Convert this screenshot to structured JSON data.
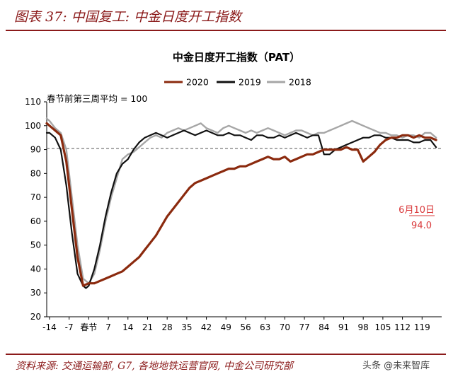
{
  "header": {
    "title": "图表 37: 中国复工: 中金日度开工指数"
  },
  "footer": {
    "source": "资料来源: 交通运输部, G7, 各地地铁运营官网, 中金公司研究部"
  },
  "watermark": "头条 @未来智库",
  "chart_data": {
    "type": "line",
    "title": "中金日度开工指数（PAT）",
    "annotation_note": "春节前第三周平均 = 100",
    "x_tick_labels": [
      "-14",
      "-7",
      "春节",
      "7",
      "14",
      "21",
      "28",
      "35",
      "42",
      "49",
      "56",
      "63",
      "70",
      "77",
      "84",
      "91",
      "98",
      "105",
      "112",
      "119"
    ],
    "x_tick_values": [
      -14,
      -7,
      0,
      7,
      14,
      21,
      28,
      35,
      42,
      49,
      56,
      63,
      70,
      77,
      84,
      91,
      98,
      105,
      112,
      119
    ],
    "xlim": [
      -15,
      126
    ],
    "ylim": [
      20,
      110
    ],
    "yticks": [
      20,
      30,
      40,
      50,
      60,
      70,
      80,
      90,
      100,
      110
    ],
    "reference_line": 90.5,
    "legend_position": "top",
    "colors": {
      "2020": "#8B2A0E",
      "2019": "#111111",
      "2018": "#A6A6A6",
      "reference": "#777777",
      "callout": "#D9383A"
    },
    "callout": {
      "date": "6月10日",
      "value": "94.0",
      "x": 124,
      "y": 94.0
    },
    "series": [
      {
        "name": "2020",
        "key": "2020",
        "x": [
          -15,
          -14,
          -12,
          -10,
          -8,
          -6,
          -4,
          -2,
          0,
          2,
          4,
          6,
          8,
          10,
          12,
          14,
          16,
          18,
          20,
          22,
          24,
          26,
          28,
          30,
          32,
          34,
          36,
          38,
          40,
          42,
          44,
          46,
          48,
          50,
          52,
          54,
          56,
          58,
          60,
          62,
          64,
          66,
          68,
          70,
          72,
          74,
          76,
          78,
          80,
          82,
          84,
          86,
          88,
          90,
          92,
          94,
          96,
          98,
          100,
          102,
          104,
          106,
          108,
          110,
          112,
          114,
          116,
          118,
          120,
          122,
          124
        ],
        "y": [
          101,
          100,
          98,
          96,
          85,
          65,
          45,
          33,
          34,
          34,
          35,
          36,
          37,
          38,
          39,
          41,
          43,
          45,
          48,
          51,
          54,
          58,
          62,
          65,
          68,
          71,
          74,
          76,
          77,
          78,
          79,
          80,
          81,
          82,
          82,
          83,
          83,
          84,
          85,
          86,
          87,
          86,
          86,
          87,
          85,
          86,
          87,
          88,
          88,
          89,
          90,
          90,
          90,
          90,
          91,
          90,
          90,
          85,
          87,
          89,
          92,
          94,
          95,
          95,
          96,
          96,
          95,
          96,
          95,
          95,
          94.0
        ]
      },
      {
        "name": "2019",
        "key": "2019",
        "x": [
          -15,
          -14,
          -12,
          -10,
          -8,
          -6,
          -4,
          -2,
          -1,
          0,
          2,
          4,
          6,
          8,
          10,
          12,
          14,
          16,
          18,
          20,
          22,
          24,
          26,
          28,
          30,
          32,
          34,
          36,
          38,
          40,
          42,
          44,
          46,
          48,
          50,
          52,
          54,
          56,
          58,
          60,
          62,
          64,
          66,
          68,
          70,
          72,
          74,
          76,
          78,
          80,
          82,
          84,
          86,
          88,
          90,
          92,
          94,
          96,
          98,
          100,
          102,
          104,
          106,
          108,
          110,
          112,
          114,
          116,
          118,
          120,
          122,
          124
        ],
        "y": [
          97,
          97,
          95,
          90,
          75,
          55,
          38,
          33,
          32,
          33,
          40,
          50,
          62,
          72,
          80,
          84,
          86,
          90,
          93,
          95,
          96,
          97,
          96,
          95,
          96,
          97,
          98,
          97,
          96,
          97,
          98,
          97,
          96,
          96,
          97,
          96,
          96,
          95,
          94,
          96,
          96,
          95,
          95,
          96,
          95,
          96,
          97,
          96,
          95,
          96,
          96,
          88,
          88,
          90,
          91,
          92,
          93,
          94,
          95,
          95,
          96,
          96,
          95,
          95,
          94,
          94,
          94,
          93,
          93,
          94,
          94,
          91
        ]
      },
      {
        "name": "2018",
        "key": "2018",
        "x": [
          -15,
          -14,
          -12,
          -10,
          -8,
          -6,
          -4,
          -2,
          0,
          2,
          4,
          6,
          8,
          10,
          12,
          14,
          16,
          18,
          20,
          22,
          24,
          26,
          28,
          30,
          32,
          34,
          36,
          38,
          40,
          42,
          44,
          46,
          48,
          50,
          52,
          54,
          56,
          58,
          60,
          62,
          64,
          66,
          68,
          70,
          72,
          74,
          76,
          78,
          80,
          82,
          84,
          86,
          88,
          90,
          92,
          94,
          96,
          98,
          100,
          102,
          104,
          106,
          108,
          110,
          112,
          114,
          116,
          118,
          120,
          122,
          124
        ],
        "y": [
          103,
          102,
          99,
          97,
          90,
          70,
          50,
          36,
          34,
          38,
          48,
          60,
          70,
          78,
          86,
          88,
          89,
          91,
          93,
          95,
          96,
          95,
          97,
          98,
          99,
          98,
          99,
          100,
          101,
          99,
          98,
          97,
          99,
          100,
          99,
          98,
          97,
          98,
          97,
          98,
          99,
          98,
          97,
          96,
          97,
          98,
          98,
          97,
          96,
          97,
          97,
          98,
          99,
          100,
          101,
          102,
          101,
          100,
          99,
          98,
          97,
          97,
          96,
          96,
          95,
          96,
          96,
          95,
          97,
          97,
          95
        ]
      }
    ]
  }
}
